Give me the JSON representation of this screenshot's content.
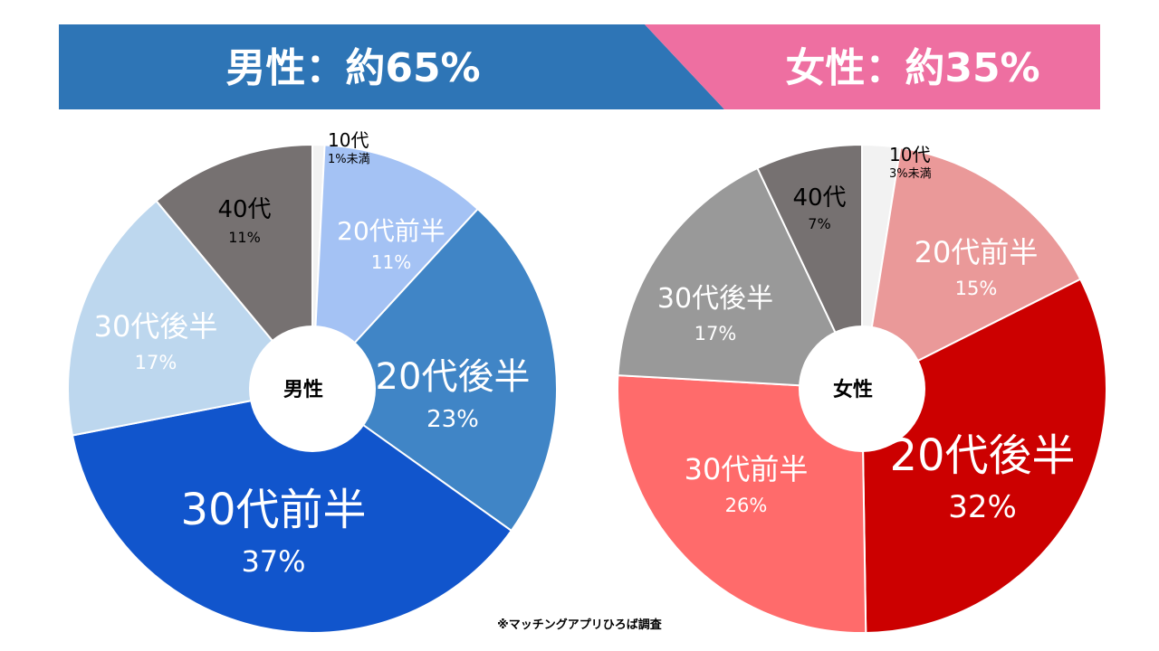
{
  "header": {
    "male_title": "男性：約65%",
    "female_title": "女性：約35%",
    "male_color": "#2e75b6",
    "female_color": "#ee6fa1"
  },
  "chart_data": [
    {
      "type": "pie",
      "center_label": "男性",
      "slices": [
        {
          "label": "10代",
          "value_label": "1%未満",
          "value": 0.8,
          "color": "#f2f2f2",
          "text_color": "#000000"
        },
        {
          "label": "20代前半",
          "value_label": "11%",
          "value": 11,
          "color": "#a4c2f4",
          "text_color": "#ffffff"
        },
        {
          "label": "20代後半",
          "value_label": "23%",
          "value": 23,
          "color": "#4085c6",
          "text_color": "#ffffff"
        },
        {
          "label": "30代前半",
          "value_label": "37%",
          "value": 37,
          "color": "#1155cc",
          "text_color": "#ffffff"
        },
        {
          "label": "30代後半",
          "value_label": "17%",
          "value": 17,
          "color": "#bdd7ee",
          "text_color": "#ffffff"
        },
        {
          "label": "40代",
          "value_label": "11%",
          "value": 11,
          "color": "#767171",
          "text_color": "#000000"
        }
      ]
    },
    {
      "type": "pie",
      "center_label": "女性",
      "slices": [
        {
          "label": "10代",
          "value_label": "3%未満",
          "value": 2.5,
          "color": "#f2f2f2",
          "text_color": "#000000"
        },
        {
          "label": "20代前半",
          "value_label": "15%",
          "value": 15,
          "color": "#ea9999",
          "text_color": "#ffffff"
        },
        {
          "label": "20代後半",
          "value_label": "32%",
          "value": 32,
          "color": "#cc0000",
          "text_color": "#ffffff"
        },
        {
          "label": "30代前半",
          "value_label": "26%",
          "value": 26,
          "color": "#ff6b6b",
          "text_color": "#ffffff"
        },
        {
          "label": "30代後半",
          "value_label": "17%",
          "value": 17,
          "color": "#999999",
          "text_color": "#ffffff"
        },
        {
          "label": "40代",
          "value_label": "7%",
          "value": 7,
          "color": "#767171",
          "text_color": "#000000"
        }
      ]
    }
  ],
  "footer": {
    "source": "※マッチングアプリひろば調査"
  }
}
